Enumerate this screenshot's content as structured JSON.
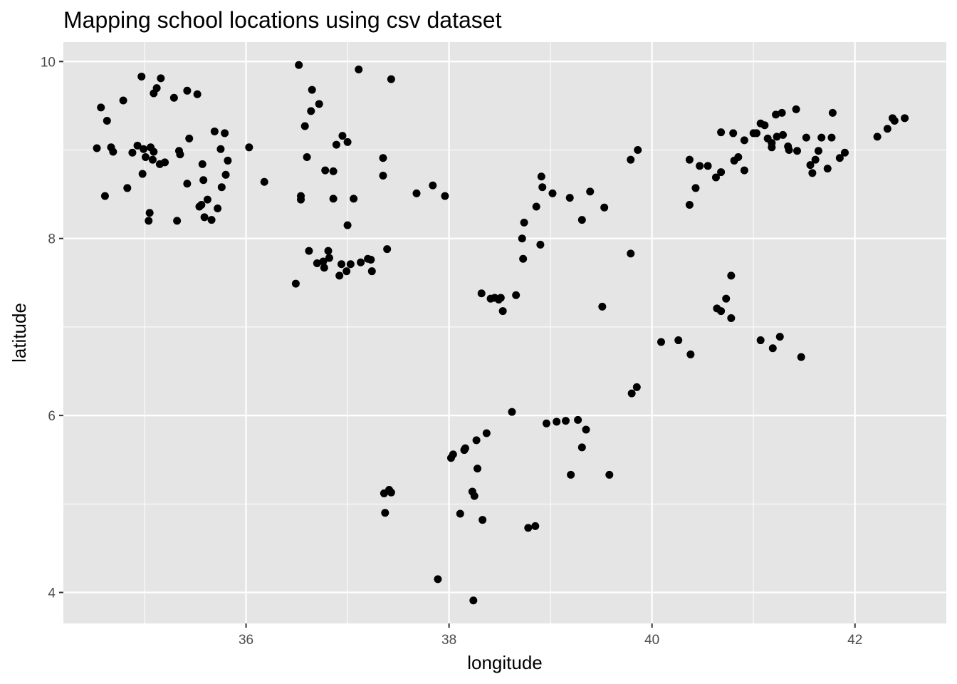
{
  "chart_data": {
    "type": "scatter",
    "title": "Mapping school locations using csv dataset",
    "xlabel": "longitude",
    "ylabel": "latitude",
    "xlim": [
      34.2,
      42.9
    ],
    "ylim": [
      3.65,
      10.22
    ],
    "xticks": [
      36,
      38,
      40,
      42
    ],
    "yticks": [
      4,
      6,
      8,
      10
    ],
    "grid": true,
    "colors": {
      "panel": "#e5e5e5",
      "grid_major": "#ffffff",
      "point": "#000000",
      "tick": "#4d4d4d"
    },
    "points": [
      [
        34.53,
        9.02
      ],
      [
        34.57,
        9.48
      ],
      [
        34.61,
        8.48
      ],
      [
        34.63,
        9.33
      ],
      [
        34.67,
        9.03
      ],
      [
        34.69,
        8.98
      ],
      [
        34.79,
        9.56
      ],
      [
        34.83,
        8.57
      ],
      [
        34.88,
        8.97
      ],
      [
        34.93,
        9.05
      ],
      [
        34.97,
        9.83
      ],
      [
        34.98,
        8.73
      ],
      [
        34.99,
        9.01
      ],
      [
        35.01,
        8.92
      ],
      [
        35.04,
        8.2
      ],
      [
        35.05,
        8.29
      ],
      [
        35.06,
        9.03
      ],
      [
        35.08,
        8.89
      ],
      [
        35.09,
        8.98
      ],
      [
        35.09,
        9.64
      ],
      [
        35.12,
        9.7
      ],
      [
        35.15,
        8.84
      ],
      [
        35.16,
        9.81
      ],
      [
        35.2,
        8.86
      ],
      [
        35.29,
        9.59
      ],
      [
        35.32,
        8.2
      ],
      [
        35.34,
        8.99
      ],
      [
        35.35,
        8.95
      ],
      [
        35.42,
        9.67
      ],
      [
        35.42,
        8.62
      ],
      [
        35.44,
        9.13
      ],
      [
        35.52,
        9.63
      ],
      [
        35.54,
        8.36
      ],
      [
        35.56,
        8.38
      ],
      [
        35.57,
        8.84
      ],
      [
        35.58,
        8.66
      ],
      [
        35.59,
        8.24
      ],
      [
        35.62,
        8.44
      ],
      [
        35.66,
        8.21
      ],
      [
        35.69,
        9.21
      ],
      [
        35.72,
        8.34
      ],
      [
        35.75,
        9.01
      ],
      [
        35.76,
        8.58
      ],
      [
        35.79,
        9.19
      ],
      [
        35.8,
        8.72
      ],
      [
        35.82,
        8.88
      ],
      [
        36.03,
        9.03
      ],
      [
        36.18,
        8.64
      ],
      [
        36.49,
        7.49
      ],
      [
        36.52,
        9.96
      ],
      [
        36.54,
        8.48
      ],
      [
        36.54,
        8.44
      ],
      [
        36.58,
        9.27
      ],
      [
        36.6,
        8.92
      ],
      [
        36.62,
        7.86
      ],
      [
        36.64,
        9.44
      ],
      [
        36.65,
        9.68
      ],
      [
        36.7,
        7.72
      ],
      [
        36.72,
        9.52
      ],
      [
        36.76,
        7.74
      ],
      [
        36.77,
        7.67
      ],
      [
        36.78,
        8.77
      ],
      [
        36.81,
        7.86
      ],
      [
        36.82,
        7.78
      ],
      [
        36.86,
        8.45
      ],
      [
        36.86,
        8.76
      ],
      [
        36.89,
        9.06
      ],
      [
        36.92,
        7.58
      ],
      [
        36.94,
        7.71
      ],
      [
        36.95,
        9.16
      ],
      [
        36.99,
        7.63
      ],
      [
        37.0,
        9.09
      ],
      [
        37.0,
        8.15
      ],
      [
        37.03,
        7.71
      ],
      [
        37.06,
        8.45
      ],
      [
        37.11,
        9.91
      ],
      [
        37.13,
        7.73
      ],
      [
        37.2,
        7.77
      ],
      [
        37.23,
        7.76
      ],
      [
        37.24,
        7.63
      ],
      [
        37.35,
        8.91
      ],
      [
        37.35,
        8.71
      ],
      [
        37.36,
        5.12
      ],
      [
        37.37,
        4.9
      ],
      [
        37.39,
        7.88
      ],
      [
        37.41,
        5.16
      ],
      [
        37.43,
        9.8
      ],
      [
        37.43,
        5.13
      ],
      [
        37.68,
        8.51
      ],
      [
        37.84,
        8.6
      ],
      [
        37.89,
        4.15
      ],
      [
        37.96,
        8.48
      ],
      [
        38.02,
        5.52
      ],
      [
        38.04,
        5.56
      ],
      [
        38.11,
        4.89
      ],
      [
        38.15,
        5.61
      ],
      [
        38.16,
        5.63
      ],
      [
        38.23,
        5.14
      ],
      [
        38.24,
        3.91
      ],
      [
        38.25,
        5.09
      ],
      [
        38.27,
        5.72
      ],
      [
        38.28,
        5.4
      ],
      [
        38.32,
        7.38
      ],
      [
        38.33,
        4.82
      ],
      [
        38.37,
        5.8
      ],
      [
        38.41,
        7.32
      ],
      [
        38.45,
        7.33
      ],
      [
        38.49,
        7.31
      ],
      [
        38.51,
        7.33
      ],
      [
        38.53,
        7.18
      ],
      [
        38.62,
        6.04
      ],
      [
        38.66,
        7.36
      ],
      [
        38.72,
        8.0
      ],
      [
        38.73,
        7.77
      ],
      [
        38.74,
        8.18
      ],
      [
        38.78,
        4.73
      ],
      [
        38.85,
        4.75
      ],
      [
        38.86,
        8.36
      ],
      [
        38.9,
        7.93
      ],
      [
        38.91,
        8.7
      ],
      [
        38.92,
        8.58
      ],
      [
        38.96,
        5.91
      ],
      [
        39.02,
        8.51
      ],
      [
        39.06,
        5.93
      ],
      [
        39.15,
        5.94
      ],
      [
        39.19,
        8.46
      ],
      [
        39.2,
        5.33
      ],
      [
        39.27,
        5.95
      ],
      [
        39.31,
        5.64
      ],
      [
        39.31,
        8.21
      ],
      [
        39.35,
        5.84
      ],
      [
        39.39,
        8.53
      ],
      [
        39.51,
        7.23
      ],
      [
        39.53,
        8.35
      ],
      [
        39.58,
        5.33
      ],
      [
        39.79,
        7.83
      ],
      [
        39.79,
        8.89
      ],
      [
        39.8,
        6.25
      ],
      [
        39.85,
        6.32
      ],
      [
        39.86,
        9.0
      ],
      [
        40.09,
        6.83
      ],
      [
        40.26,
        6.85
      ],
      [
        40.37,
        8.89
      ],
      [
        40.37,
        8.38
      ],
      [
        40.38,
        6.69
      ],
      [
        40.43,
        8.57
      ],
      [
        40.47,
        8.82
      ],
      [
        40.55,
        8.82
      ],
      [
        40.63,
        8.69
      ],
      [
        40.64,
        7.21
      ],
      [
        40.68,
        8.75
      ],
      [
        40.68,
        7.18
      ],
      [
        40.68,
        9.2
      ],
      [
        40.73,
        7.32
      ],
      [
        40.78,
        7.58
      ],
      [
        40.78,
        7.1
      ],
      [
        40.8,
        9.19
      ],
      [
        40.81,
        8.88
      ],
      [
        40.85,
        8.92
      ],
      [
        40.91,
        9.11
      ],
      [
        40.91,
        8.77
      ],
      [
        41.0,
        9.19
      ],
      [
        41.03,
        9.19
      ],
      [
        41.07,
        9.3
      ],
      [
        41.07,
        6.85
      ],
      [
        41.11,
        9.28
      ],
      [
        41.14,
        9.13
      ],
      [
        41.18,
        9.08
      ],
      [
        41.18,
        9.03
      ],
      [
        41.19,
        6.76
      ],
      [
        41.22,
        9.4
      ],
      [
        41.23,
        9.15
      ],
      [
        41.26,
        6.89
      ],
      [
        41.28,
        9.42
      ],
      [
        41.29,
        9.17
      ],
      [
        41.34,
        9.04
      ],
      [
        41.35,
        9.0
      ],
      [
        41.42,
        9.46
      ],
      [
        41.43,
        8.99
      ],
      [
        41.47,
        6.66
      ],
      [
        41.52,
        9.14
      ],
      [
        41.56,
        8.83
      ],
      [
        41.58,
        8.74
      ],
      [
        41.61,
        8.89
      ],
      [
        41.64,
        8.99
      ],
      [
        41.67,
        9.14
      ],
      [
        41.73,
        8.79
      ],
      [
        41.77,
        9.14
      ],
      [
        41.78,
        9.42
      ],
      [
        41.85,
        8.91
      ],
      [
        41.9,
        8.97
      ],
      [
        42.22,
        9.15
      ],
      [
        42.32,
        9.24
      ],
      [
        42.37,
        9.36
      ],
      [
        42.39,
        9.33
      ],
      [
        42.49,
        9.36
      ]
    ]
  }
}
